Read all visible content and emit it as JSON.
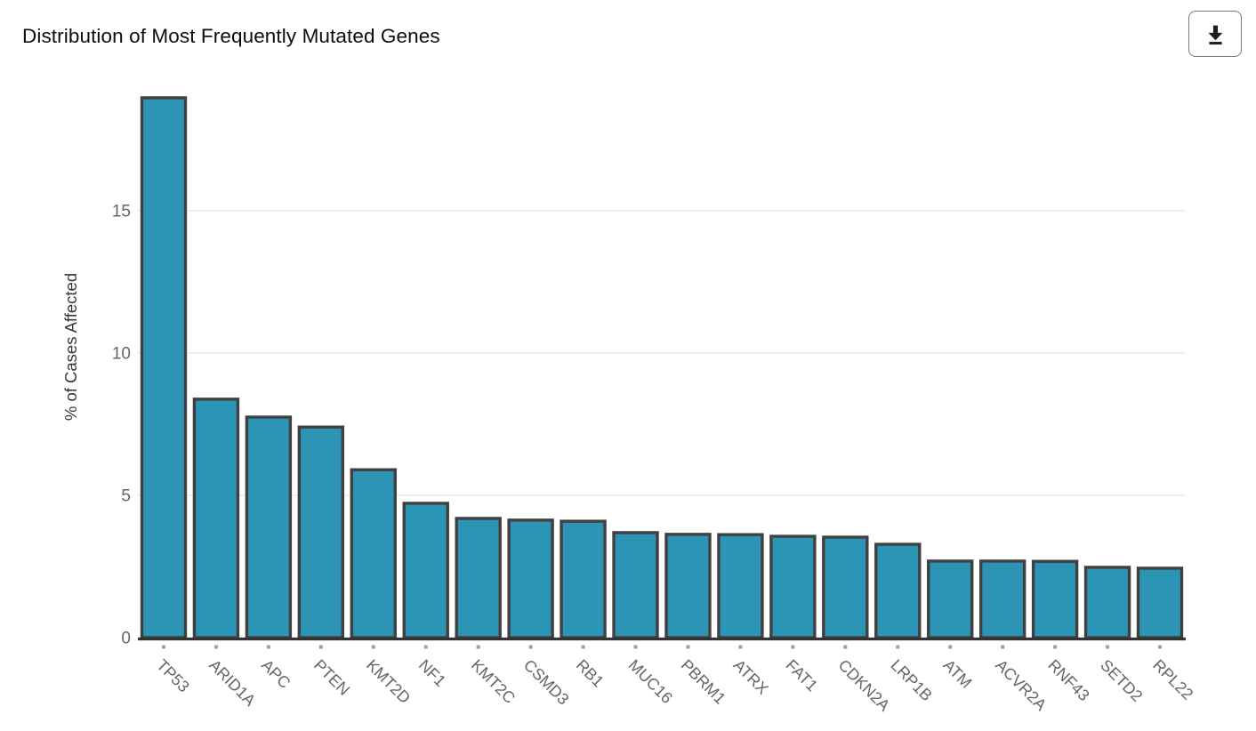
{
  "header": {
    "title": "Distribution of Most Frequently Mutated Genes",
    "download_icon": "download-icon"
  },
  "chart_data": {
    "type": "bar",
    "title": "Distribution of Most Frequently Mutated Genes",
    "xlabel": "",
    "ylabel": "% of Cases Affected",
    "categories": [
      "TP53",
      "ARID1A",
      "APC",
      "PTEN",
      "KMT2D",
      "NF1",
      "KMT2C",
      "CSMD3",
      "RB1",
      "MUC16",
      "PBRM1",
      "ATRX",
      "FAT1",
      "CDKN2A",
      "LRP1B",
      "ATM",
      "ACVR2A",
      "RNF43",
      "SETD2",
      "RPL22"
    ],
    "values": [
      18.97,
      8.38,
      7.75,
      7.4,
      5.9,
      4.72,
      4.19,
      4.13,
      4.09,
      3.69,
      3.63,
      3.62,
      3.56,
      3.53,
      3.28,
      2.69,
      2.69,
      2.68,
      2.47,
      2.44
    ],
    "ylim": [
      0,
      19.5
    ],
    "yticks": [
      0,
      5,
      10,
      15
    ],
    "grid": "horizontal-light",
    "legend": "none",
    "x_label_rotation_deg": 45,
    "colors": {
      "bar_fill": "#2C94B5",
      "bar_stroke": "#404040",
      "baseline": "#333333",
      "gridline": "#ECECEC",
      "tick_mark": "#9E9E9E",
      "tick_label": "#666666",
      "x_label": "#666666",
      "axis_title": "#383838",
      "title": "#0D0D0D"
    }
  }
}
